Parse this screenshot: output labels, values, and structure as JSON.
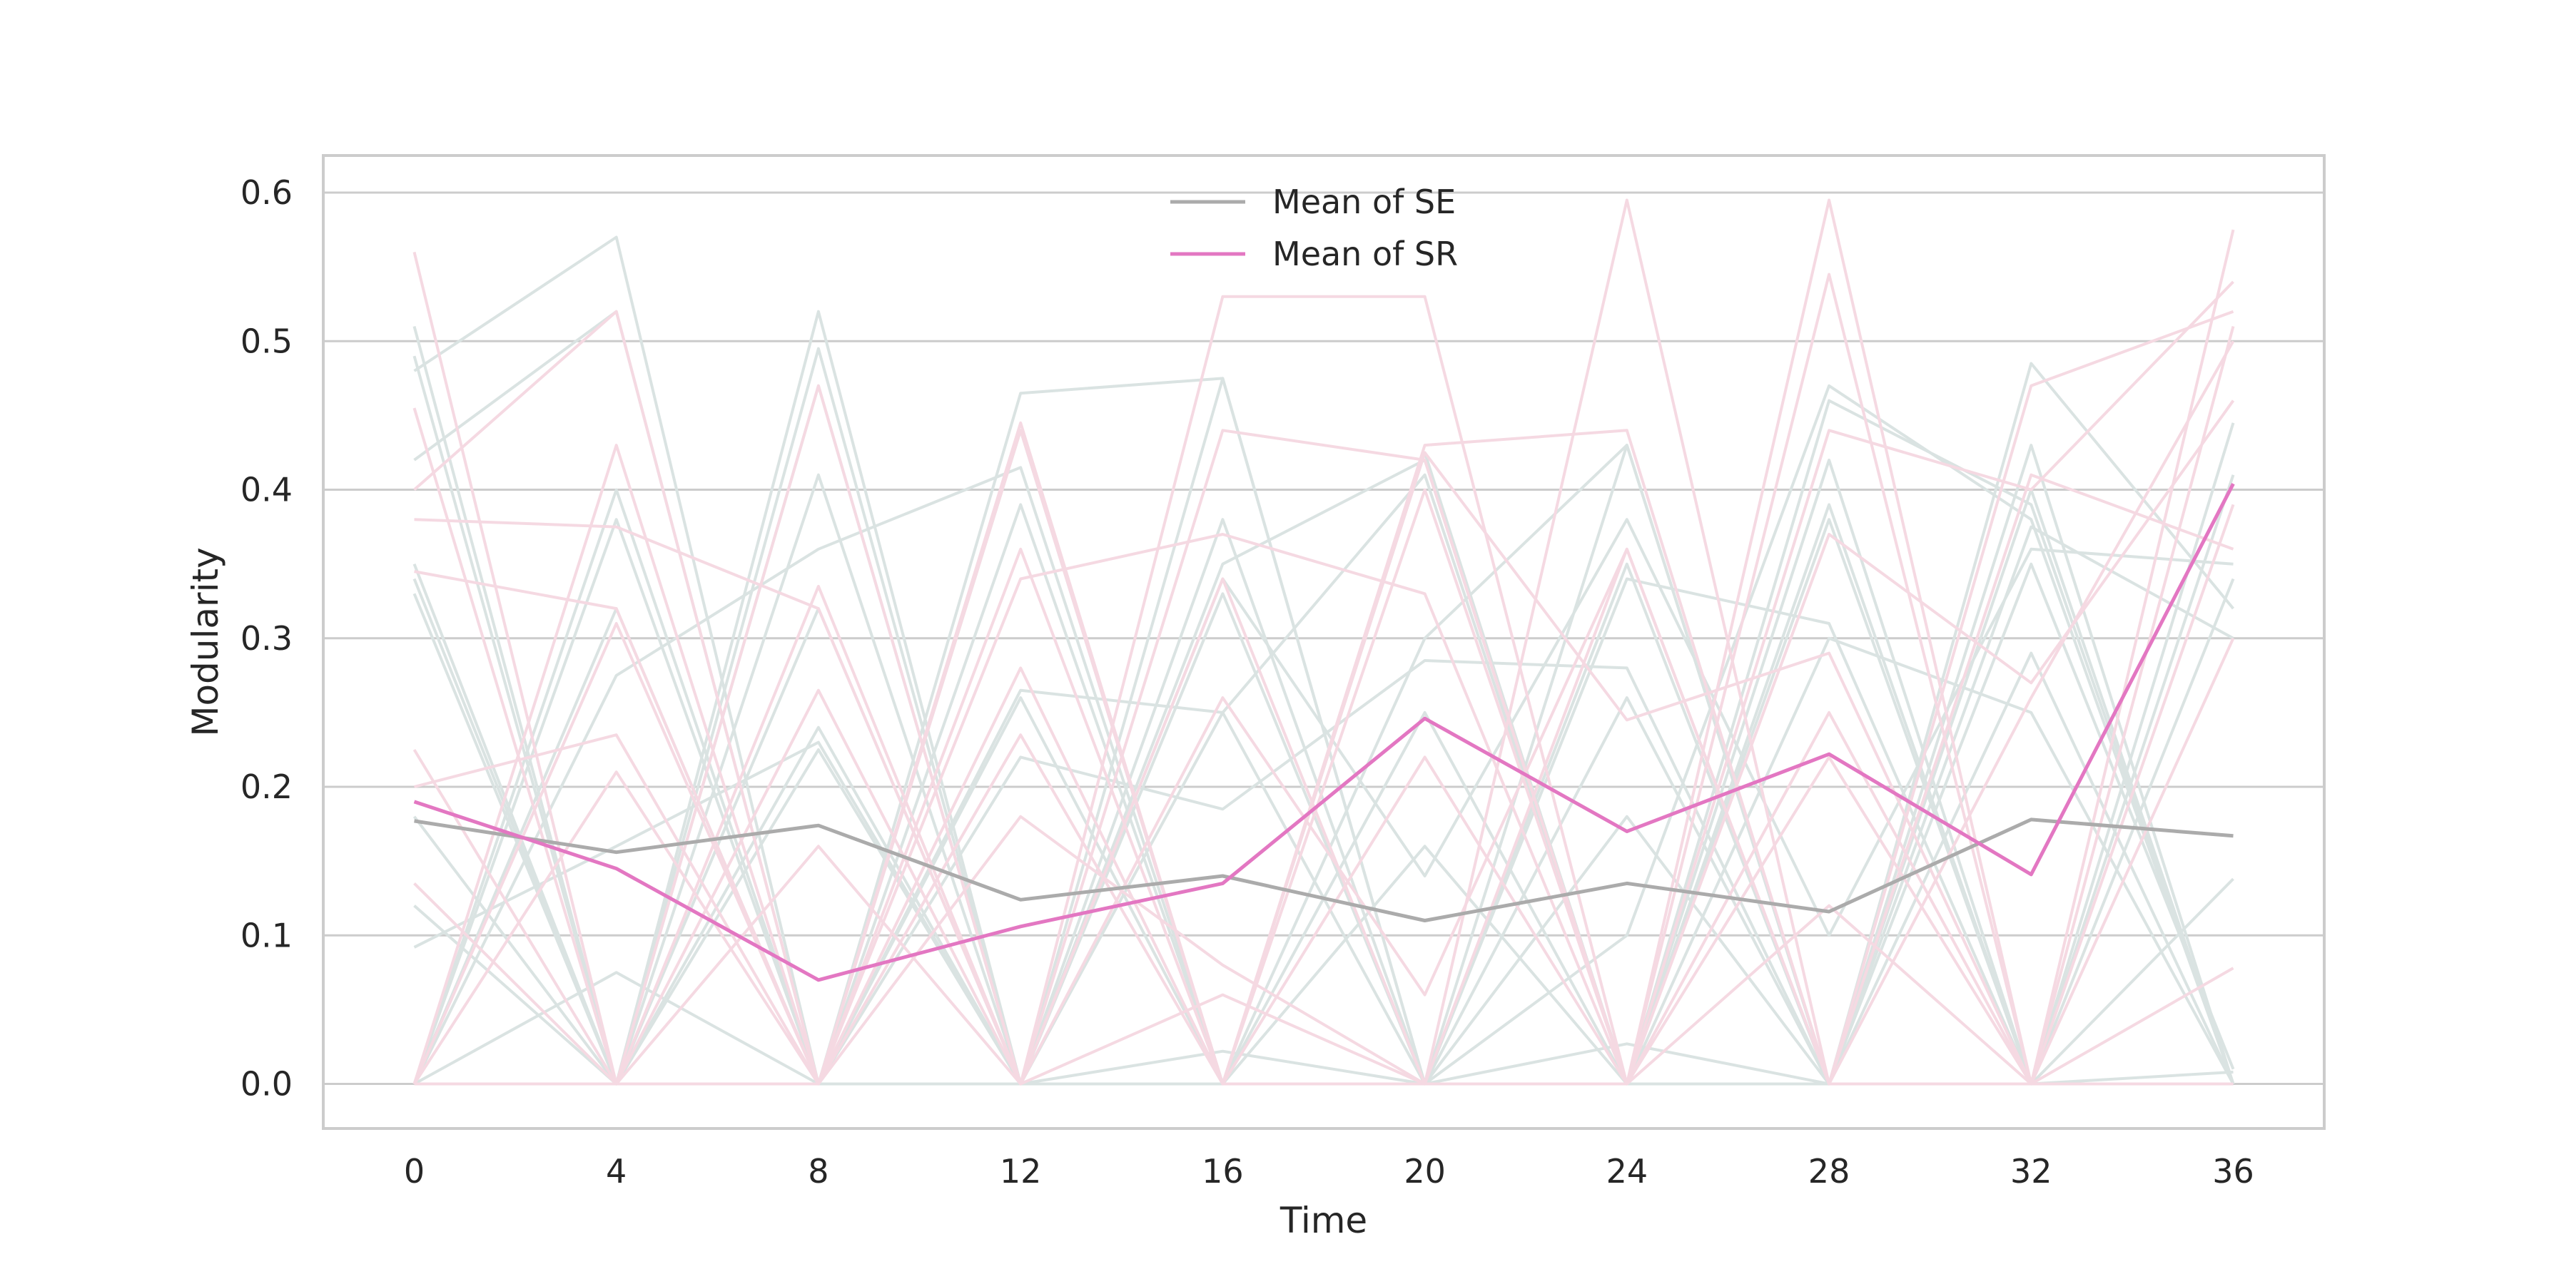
{
  "chart_data": {
    "type": "line",
    "xlabel": "Time",
    "ylabel": "Modularity",
    "x": [
      0,
      4,
      8,
      12,
      16,
      20,
      24,
      28,
      32,
      36
    ],
    "xlim": [
      -1.8,
      37.8
    ],
    "ylim": [
      -0.03,
      0.625
    ],
    "x_ticks": [
      "0",
      "4",
      "8",
      "12",
      "16",
      "20",
      "24",
      "28",
      "32",
      "36"
    ],
    "y_ticks": [
      "0.0",
      "0.1",
      "0.2",
      "0.3",
      "0.4",
      "0.5",
      "0.6"
    ],
    "grid": "horizontal",
    "legend_position": "top-center",
    "colors": {
      "se_mean": "#ababab",
      "sr_mean": "#e377c2",
      "se_individual": "#dae3e2",
      "sr_individual": "#f5d9e2",
      "grid": "#cccccc",
      "frame": "#cccccc"
    },
    "series": [
      {
        "name": "Mean of SE",
        "group": "SE",
        "role": "mean",
        "values": [
          0.177,
          0.156,
          0.174,
          0.124,
          0.14,
          0.11,
          0.135,
          0.116,
          0.178,
          0.167
        ]
      },
      {
        "name": "Mean of SR",
        "group": "SR",
        "role": "mean",
        "values": [
          0.19,
          0.145,
          0.07,
          0.106,
          0.135,
          0.246,
          0.17,
          0.222,
          0.141,
          0.404
        ]
      }
    ],
    "individual_series": [
      {
        "group": "SE",
        "values": [
          0.49,
          0.0,
          0.52,
          0.0,
          0.475,
          0.0,
          0.43,
          0.0,
          0.43,
          0.0
        ]
      },
      {
        "group": "SE",
        "values": [
          0.48,
          0.57,
          0.0,
          0.465,
          0.475,
          0.0,
          0.1,
          0.47,
          0.38,
          0.0
        ]
      },
      {
        "group": "SE",
        "values": [
          0.51,
          0.0,
          0.495,
          0.0,
          0.35,
          0.42,
          0.0,
          0.39,
          0.0,
          0.34
        ]
      },
      {
        "group": "SE",
        "values": [
          0.42,
          0.52,
          0.0,
          0.44,
          0.0,
          0.3,
          0.43,
          0.0,
          0.485,
          0.32
        ]
      },
      {
        "group": "SE",
        "values": [
          0.35,
          0.0,
          0.47,
          0.0,
          0.38,
          0.0,
          0.26,
          0.0,
          0.4,
          0.0
        ]
      },
      {
        "group": "SE",
        "values": [
          0.34,
          0.0,
          0.41,
          0.0,
          0.33,
          0.0,
          0.35,
          0.0,
          0.35,
          0.01
        ]
      },
      {
        "group": "SE",
        "values": [
          0.0,
          0.4,
          0.0,
          0.39,
          0.0,
          0.425,
          0.0,
          0.42,
          0.0,
          0.445
        ]
      },
      {
        "group": "SE",
        "values": [
          0.0,
          0.38,
          0.0,
          0.265,
          0.25,
          0.41,
          0.0,
          0.38,
          0.0,
          0.0
        ]
      },
      {
        "group": "SE",
        "values": [
          0.0,
          0.32,
          0.0,
          0.22,
          0.185,
          0.285,
          0.28,
          0.0,
          0.375,
          0.3
        ]
      },
      {
        "group": "SE",
        "values": [
          0.0,
          0.275,
          0.36,
          0.415,
          0.0,
          0.25,
          0.0,
          0.46,
          0.39,
          0.0
        ]
      },
      {
        "group": "SE",
        "values": [
          0.33,
          0.0,
          0.32,
          0.0,
          0.25,
          0.0,
          0.34,
          0.31,
          0.0,
          0.41
        ]
      },
      {
        "group": "SE",
        "values": [
          0.18,
          0.0,
          0.24,
          0.0,
          0.34,
          0.14,
          0.38,
          0.1,
          0.36,
          0.35
        ]
      },
      {
        "group": "SE",
        "values": [
          0.12,
          0.0,
          0.225,
          0.0,
          0.0,
          0.16,
          0.0,
          0.3,
          0.25,
          0.0
        ]
      },
      {
        "group": "SE",
        "values": [
          0.092,
          0.16,
          0.23,
          0.0,
          0.0,
          0.0,
          0.18,
          0.0,
          0.29,
          0.0
        ]
      },
      {
        "group": "SE",
        "values": [
          0.0,
          0.075,
          0.0,
          0.26,
          0.0,
          0.0,
          0.0,
          0.0,
          0.0,
          0.138
        ]
      },
      {
        "group": "SE",
        "values": [
          0.0,
          0.0,
          0.0,
          0.0,
          0.022,
          0.0,
          0.027,
          0.0,
          0.0,
          0.008
        ]
      },
      {
        "group": "SR",
        "values": [
          0.56,
          0.0,
          0.47,
          0.0,
          0.53,
          0.53,
          0.0,
          0.595,
          0.0,
          0.575
        ]
      },
      {
        "group": "SR",
        "values": [
          0.455,
          0.0,
          0.0,
          0.44,
          0.0,
          0.0,
          0.595,
          0.0,
          0.0,
          0.0
        ]
      },
      {
        "group": "SR",
        "values": [
          0.0,
          0.43,
          0.0,
          0.34,
          0.37,
          0.33,
          0.0,
          0.545,
          0.0,
          0.51
        ]
      },
      {
        "group": "SR",
        "values": [
          0.4,
          0.52,
          0.0,
          0.445,
          0.0,
          0.43,
          0.44,
          0.0,
          0.47,
          0.52
        ]
      },
      {
        "group": "SR",
        "values": [
          0.38,
          0.375,
          0.32,
          0.0,
          0.44,
          0.42,
          0.0,
          0.44,
          0.4,
          0.54
        ]
      },
      {
        "group": "SR",
        "values": [
          0.345,
          0.32,
          0.0,
          0.36,
          0.0,
          0.4,
          0.0,
          0.37,
          0.27,
          0.46
        ]
      },
      {
        "group": "SR",
        "values": [
          0.0,
          0.21,
          0.0,
          0.28,
          0.0,
          0.425,
          0.245,
          0.29,
          0.0,
          0.39
        ]
      },
      {
        "group": "SR",
        "values": [
          0.225,
          0.0,
          0.265,
          0.0,
          0.26,
          0.06,
          0.36,
          0.0,
          0.41,
          0.36
        ]
      },
      {
        "group": "SR",
        "values": [
          0.2,
          0.235,
          0.0,
          0.235,
          0.0,
          0.22,
          0.0,
          0.25,
          0.0,
          0.3
        ]
      },
      {
        "group": "SR",
        "values": [
          0.135,
          0.0,
          0.16,
          0.0,
          0.06,
          0.0,
          0.36,
          0.0,
          0.26,
          0.5
        ]
      },
      {
        "group": "SR",
        "values": [
          0.0,
          0.31,
          0.0,
          0.18,
          0.08,
          0.0,
          0.0,
          0.12,
          0.0,
          0.0
        ]
      },
      {
        "group": "SR",
        "values": [
          0.0,
          0.0,
          0.335,
          0.0,
          0.34,
          0.0,
          0.0,
          0.22,
          0.0,
          0.078
        ]
      }
    ]
  }
}
